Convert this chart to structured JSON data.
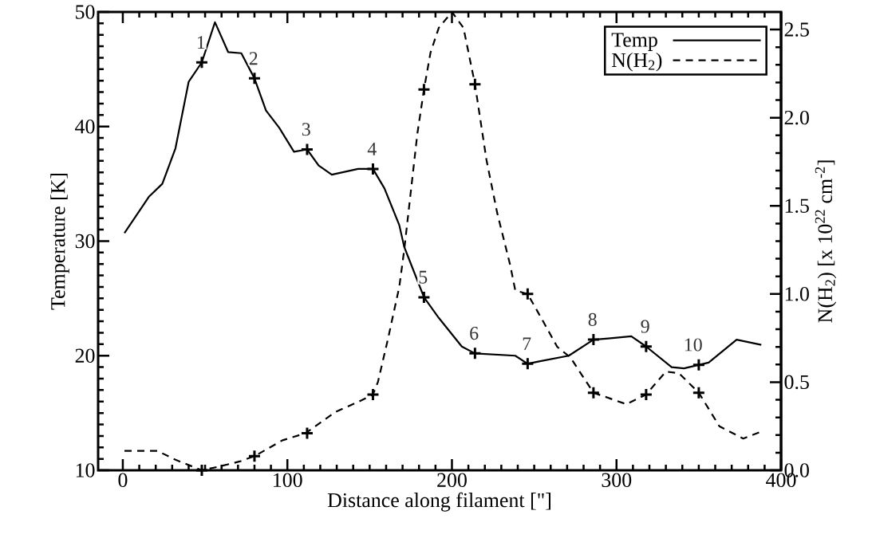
{
  "chart_data": {
    "type": "line",
    "xlabel": "Distance along filament [\"]",
    "ylabel": "Temperature [K]",
    "y2label": "N(H$_{2}$) [x 10$^{22}$ cm$^{-2}$]",
    "xlim": [
      -15,
      400
    ],
    "xticks": [
      0,
      100,
      200,
      300,
      400
    ],
    "ylim": [
      10,
      50
    ],
    "yticks": [
      10,
      20,
      30,
      40,
      50
    ],
    "y2lim": [
      0,
      2.6
    ],
    "y2ticks": [
      {
        "value": 0,
        "label": "0.0"
      },
      0.5,
      {
        "value": 1,
        "label": "1.0"
      },
      1.5,
      {
        "value": 2,
        "label": "2.0"
      },
      2.5
    ],
    "grid": false,
    "legend": "top right",
    "line_style": "solid",
    "series": [
      {
        "name": "Temp",
        "color": "#000000",
        "x": [
          1,
          16,
          24,
          32,
          40,
          48,
          56,
          64,
          72,
          80,
          87,
          95,
          104,
          112,
          119,
          127,
          143,
          152,
          159,
          168,
          171,
          183,
          192,
          206,
          214,
          238.5,
          246,
          253,
          271,
          286,
          295,
          309,
          318,
          333.5,
          341,
          350,
          356,
          373,
          388
        ],
        "values": [
          30.7,
          33.9,
          35.0,
          38.1,
          43.9,
          45.6,
          49.1,
          46.5,
          46.4,
          44.2,
          41.4,
          39.9,
          37.8,
          38.0,
          36.6,
          35.8,
          36.3,
          36.3,
          34.6,
          31.4,
          29.5,
          25.1,
          23.3,
          20.8,
          20.2,
          20.0,
          19.3,
          19.5,
          20.0,
          21.4,
          21.5,
          21.7,
          20.8,
          19.0,
          18.9,
          19.2,
          19.4,
          21.4,
          20.95
        ]
      },
      {
        "name": "N(H$_{2}$)",
        "axis": "y2",
        "color": "#000000",
        "line_style": "dashed",
        "x": [
          1,
          21,
          32,
          48,
          58,
          71,
          80,
          97,
          111,
          129,
          143.5,
          152,
          155,
          161,
          168,
          171,
          179,
          183,
          187,
          192,
          200,
          207,
          214,
          221,
          227.5,
          235.5,
          238.5,
          246,
          254.5,
          264,
          272,
          286,
          306,
          318,
          330,
          338,
          350,
          362.5,
          377,
          388
        ],
        "values": [
          0.11,
          0.11,
          0.06,
          0.0,
          0.02,
          0.05,
          0.08,
          0.17,
          0.21,
          0.33,
          0.39,
          0.43,
          0.5,
          0.74,
          1.04,
          1.25,
          1.91,
          2.16,
          2.37,
          2.51,
          2.6,
          2.51,
          2.19,
          1.76,
          1.46,
          1.16,
          1.02,
          1.0,
          0.86,
          0.7,
          0.64,
          0.44,
          0.375,
          0.43,
          0.56,
          0.55,
          0.44,
          0.25,
          0.18,
          0.22
        ]
      },
      {
        "type": "scatter",
        "marker": "cross",
        "color": "#000000",
        "x": [
          48,
          80,
          112,
          152,
          183,
          214,
          246,
          286,
          318,
          350
        ],
        "values": [
          45.6,
          44.2,
          38.0,
          36.3,
          25.1,
          20.2,
          19.3,
          21.4,
          20.8,
          19.2
        ]
      },
      {
        "type": "scatter",
        "marker": "cross",
        "axis": "y2",
        "color": "#000000",
        "x": [
          48,
          80,
          112,
          152,
          183,
          214,
          246,
          286,
          318,
          350
        ],
        "values": [
          0.0,
          0.08,
          0.21,
          0.43,
          2.16,
          2.19,
          1.0,
          0.44,
          0.43,
          0.44
        ]
      }
    ],
    "annotations": [
      {
        "text": "1",
        "x": 48,
        "y": 45.6
      },
      {
        "text": "2",
        "x": 80,
        "y": 44.2
      },
      {
        "text": "3",
        "x": 112,
        "y": 38.0
      },
      {
        "text": "4",
        "x": 152,
        "y": 36.3
      },
      {
        "text": "5",
        "x": 183,
        "y": 25.1
      },
      {
        "text": "6",
        "x": 214,
        "y": 20.2
      },
      {
        "text": "7",
        "x": 246,
        "y": 19.3
      },
      {
        "text": "8",
        "x": 286,
        "y": 21.4
      },
      {
        "text": "9",
        "x": 318,
        "y": 20.8
      },
      {
        "text": "10",
        "x": 350,
        "y": 19.2
      }
    ]
  }
}
